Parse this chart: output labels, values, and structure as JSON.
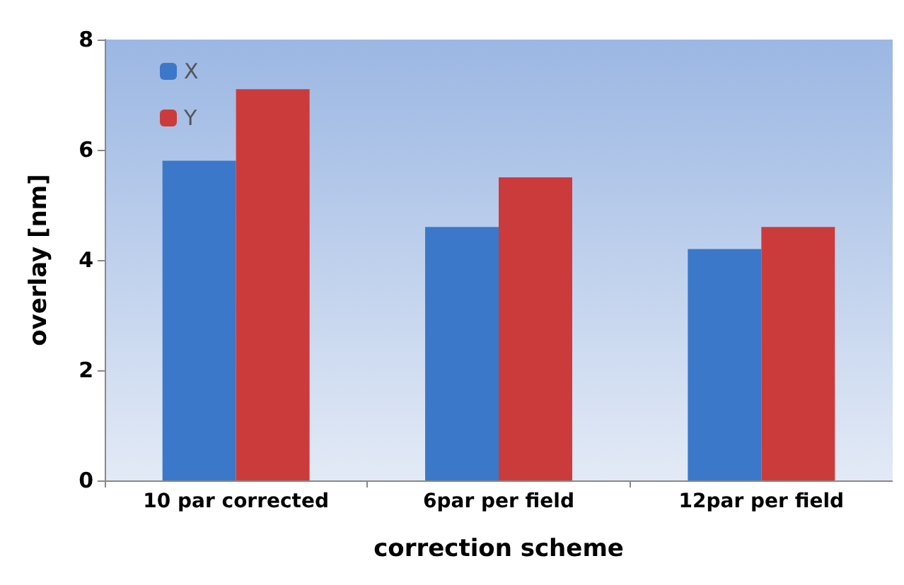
{
  "chart_data": {
    "type": "bar",
    "xlabel": "correction scheme",
    "ylabel": "overlay [nm]",
    "categories": [
      "10 par corrected",
      "6par per field",
      "12par per field"
    ],
    "series": [
      {
        "name": "X",
        "color": "#3b78c9",
        "values": [
          5.8,
          4.6,
          4.2
        ]
      },
      {
        "name": "Y",
        "color": "#cc3b3b",
        "values": [
          7.1,
          5.5,
          4.6
        ]
      }
    ],
    "ylim": [
      0,
      8
    ],
    "yticks": [
      0,
      2,
      4,
      6,
      8
    ],
    "grid": false,
    "legend": "top left"
  }
}
